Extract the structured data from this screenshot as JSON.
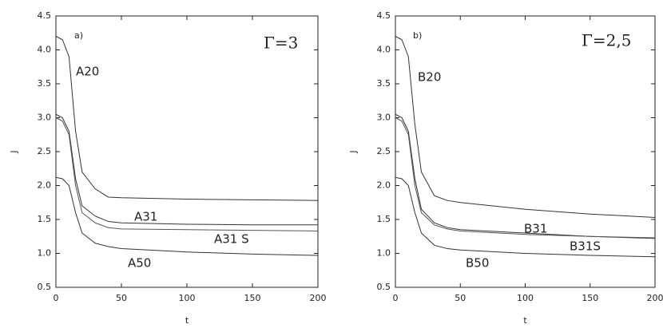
{
  "chart_data": [
    {
      "type": "line",
      "xlabel": "t",
      "ylabel": "J",
      "annotations": [
        "a)",
        "Γ=3",
        "A20",
        "A31",
        "A31 S",
        "A50"
      ],
      "x": [
        0,
        5,
        10,
        15,
        20,
        30,
        40,
        50,
        100,
        150,
        200
      ],
      "series": [
        {
          "color": "#333333",
          "values": [
            4.2,
            4.15,
            3.9,
            2.8,
            2.2,
            1.95,
            1.83,
            1.82,
            1.8,
            1.79,
            1.78
          ]
        },
        {
          "color": "#333333",
          "values": [
            3.05,
            3.0,
            2.8,
            2.1,
            1.7,
            1.55,
            1.47,
            1.45,
            1.43,
            1.42,
            1.42
          ]
        },
        {
          "color": "#555555",
          "values": [
            3.0,
            2.95,
            2.75,
            2.0,
            1.6,
            1.45,
            1.38,
            1.36,
            1.35,
            1.34,
            1.33
          ]
        },
        {
          "color": "#333333",
          "values": [
            2.12,
            2.1,
            2.0,
            1.6,
            1.3,
            1.15,
            1.1,
            1.07,
            1.02,
            0.99,
            0.97
          ]
        }
      ],
      "xlim": [
        0,
        200
      ],
      "xticks": [
        0,
        50,
        100,
        150,
        200
      ],
      "ylim": [
        0.5,
        4.5
      ],
      "yticks": [
        0.5,
        {
          "value": 1,
          "label": "1.0"
        },
        1.5,
        {
          "value": 2,
          "label": "2.0"
        },
        2.5,
        {
          "value": 3,
          "label": "3.0"
        },
        3.5,
        {
          "value": 4,
          "label": "4.0"
        },
        4.5
      ]
    },
    {
      "type": "line",
      "xlabel": "t",
      "ylabel": "J",
      "annotations": [
        "b)",
        "Γ=2,5",
        "B20",
        "B31",
        "B31S",
        "B50"
      ],
      "x": [
        0,
        5,
        10,
        15,
        20,
        30,
        40,
        50,
        100,
        150,
        200
      ],
      "series": [
        {
          "color": "#333333",
          "values": [
            4.2,
            4.15,
            3.9,
            2.9,
            2.2,
            1.85,
            1.78,
            1.75,
            1.65,
            1.58,
            1.53
          ]
        },
        {
          "color": "#333333",
          "values": [
            3.05,
            3.0,
            2.8,
            2.1,
            1.65,
            1.45,
            1.38,
            1.35,
            1.3,
            1.25,
            1.22
          ]
        },
        {
          "color": "#555555",
          "values": [
            3.0,
            2.95,
            2.75,
            2.0,
            1.6,
            1.42,
            1.36,
            1.33,
            1.28,
            1.25,
            1.23
          ]
        },
        {
          "color": "#333333",
          "values": [
            2.12,
            2.1,
            2.0,
            1.6,
            1.3,
            1.12,
            1.07,
            1.05,
            1.0,
            0.97,
            0.95
          ]
        }
      ],
      "xlim": [
        0,
        200
      ],
      "xticks": [
        0,
        50,
        100,
        150,
        200
      ],
      "ylim": [
        0.5,
        4.5
      ],
      "yticks": [
        0.5,
        {
          "value": 1,
          "label": "1.0"
        },
        1.5,
        {
          "value": 2,
          "label": "2.0"
        },
        2.5,
        {
          "value": 3,
          "label": "3.0"
        },
        3.5,
        {
          "value": 4,
          "label": "4.0"
        },
        4.5
      ]
    }
  ]
}
